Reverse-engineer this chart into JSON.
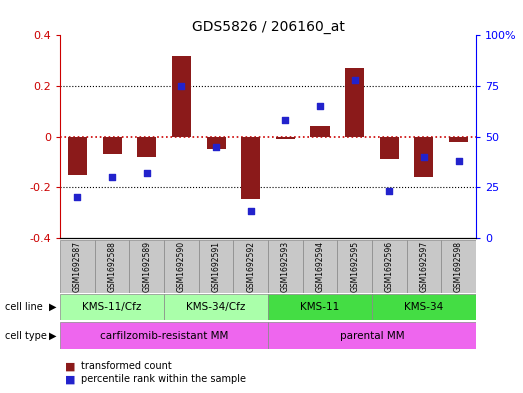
{
  "title": "GDS5826 / 206160_at",
  "samples": [
    "GSM1692587",
    "GSM1692588",
    "GSM1692589",
    "GSM1692590",
    "GSM1692591",
    "GSM1692592",
    "GSM1692593",
    "GSM1692594",
    "GSM1692595",
    "GSM1692596",
    "GSM1692597",
    "GSM1692598"
  ],
  "transformed_count": [
    -0.15,
    -0.07,
    -0.08,
    0.32,
    -0.05,
    -0.245,
    -0.01,
    0.04,
    0.27,
    -0.09,
    -0.16,
    -0.02
  ],
  "percentile_rank": [
    20,
    30,
    32,
    75,
    45,
    13,
    58,
    65,
    78,
    23,
    40,
    38
  ],
  "ylim_left": [
    -0.4,
    0.4
  ],
  "ylim_right": [
    0,
    100
  ],
  "yticks_left": [
    -0.4,
    -0.2,
    0.0,
    0.2,
    0.4
  ],
  "yticks_right": [
    0,
    25,
    50,
    75,
    100
  ],
  "bar_color": "#8B1A1A",
  "dot_color": "#2222CC",
  "zero_line_color": "#CC0000",
  "grid_color": "#000000",
  "cell_line_groups": [
    {
      "label": "KMS-11/Cfz",
      "start": 0,
      "end": 2,
      "color": "#AAFFAA"
    },
    {
      "label": "KMS-34/Cfz",
      "start": 3,
      "end": 5,
      "color": "#AAFFAA"
    },
    {
      "label": "KMS-11",
      "start": 6,
      "end": 8,
      "color": "#44DD44"
    },
    {
      "label": "KMS-34",
      "start": 9,
      "end": 11,
      "color": "#44DD44"
    }
  ],
  "cell_type_groups": [
    {
      "label": "carfilzomib-resistant MM",
      "start": 0,
      "end": 5,
      "color": "#EE66EE"
    },
    {
      "label": "parental MM",
      "start": 6,
      "end": 11,
      "color": "#EE66EE"
    }
  ],
  "legend_items": [
    {
      "label": "transformed count",
      "color": "#8B1A1A"
    },
    {
      "label": "percentile rank within the sample",
      "color": "#2222CC"
    }
  ],
  "sample_box_color": "#C8C8C8",
  "right_tick_labels": [
    "0",
    "25",
    "50",
    "75",
    "100%"
  ]
}
